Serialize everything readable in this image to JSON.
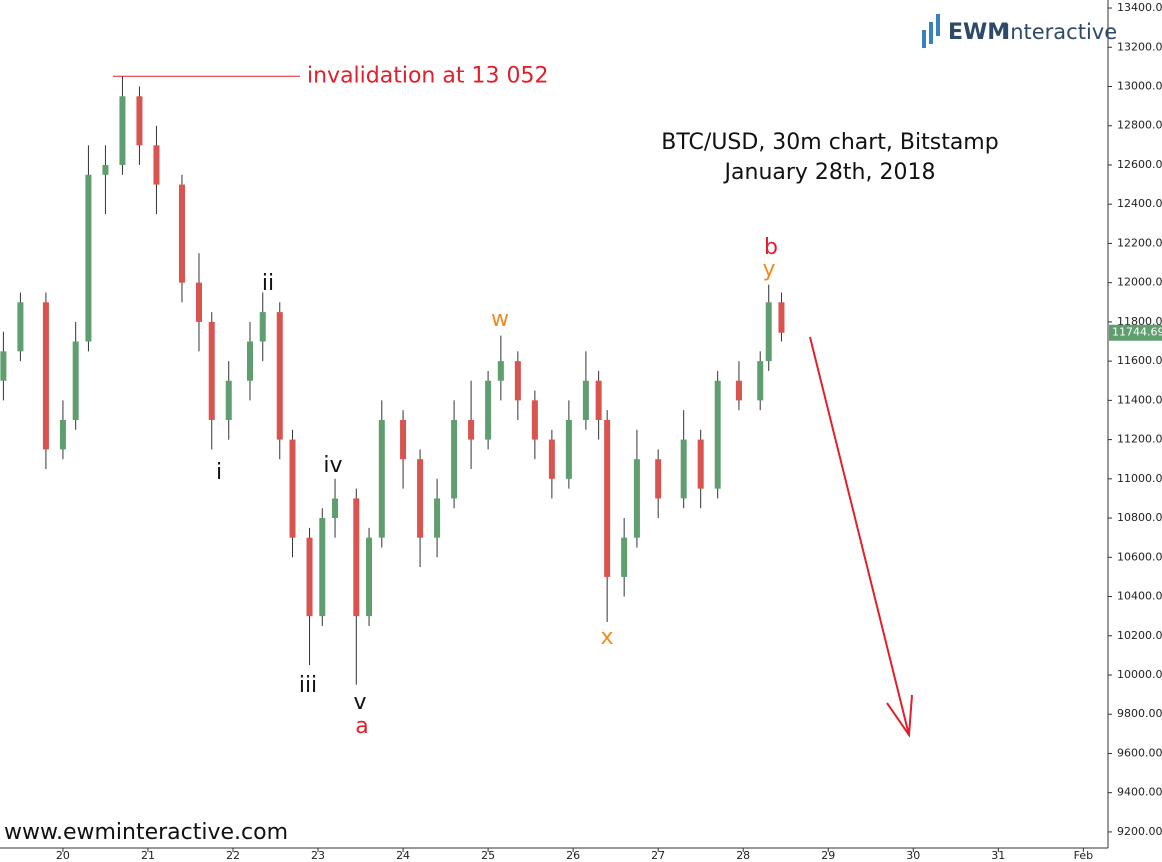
{
  "chart_data": {
    "type": "candlestick",
    "title": "BTC/USD, 30m chart, Bitstamp",
    "subtitle": "January 28th, 2018",
    "logo": {
      "bold": "EWM",
      "rest": "Interactive"
    },
    "footer": "www.ewminteractive.com",
    "x": [
      19.3,
      19.5,
      19.8,
      20.0,
      20.15,
      20.3,
      20.5,
      20.7,
      20.9,
      21.1,
      21.4,
      21.6,
      21.75,
      21.95,
      22.2,
      22.35,
      22.55,
      22.7,
      22.9,
      23.05,
      23.2,
      23.45,
      23.6,
      23.75,
      24.0,
      24.2,
      24.4,
      24.6,
      24.8,
      25.0,
      25.15,
      25.35,
      25.55,
      25.75,
      25.95,
      26.15,
      26.3,
      26.4,
      26.6,
      26.75,
      27.0,
      27.3,
      27.5,
      27.7,
      27.95,
      28.2,
      28.3,
      28.45
    ],
    "open": [
      11500,
      11650,
      11900,
      11150,
      11300,
      11700,
      12550,
      12600,
      12950,
      12700,
      12500,
      12000,
      11800,
      11300,
      11500,
      11700,
      11850,
      11200,
      10700,
      10300,
      10800,
      10900,
      10300,
      10700,
      11300,
      11100,
      10700,
      10900,
      11300,
      11200,
      11500,
      11600,
      11400,
      11200,
      11000,
      11300,
      11500,
      11300,
      10500,
      10700,
      11100,
      10900,
      11200,
      10950,
      11500,
      11400,
      11600,
      11900
    ],
    "high": [
      11750,
      11950,
      11950,
      11400,
      11800,
      12700,
      12700,
      13052,
      13000,
      12800,
      12550,
      12150,
      11850,
      11600,
      11800,
      11950,
      11900,
      11250,
      10750,
      10850,
      11000,
      10950,
      10750,
      11400,
      11350,
      11150,
      11000,
      11400,
      11500,
      11550,
      11730,
      11650,
      11450,
      11250,
      11400,
      11650,
      11550,
      11350,
      10800,
      11250,
      11150,
      11350,
      11250,
      11550,
      11600,
      11650,
      11990,
      11950
    ],
    "low": [
      11400,
      11600,
      11050,
      11100,
      11250,
      11650,
      12350,
      12550,
      12600,
      12350,
      11900,
      11650,
      11150,
      11200,
      11400,
      11600,
      11100,
      10600,
      10050,
      10250,
      10700,
      9950,
      10250,
      10650,
      10950,
      10550,
      10600,
      10850,
      11050,
      11150,
      11400,
      11300,
      11100,
      10900,
      10950,
      11250,
      11200,
      10270,
      10400,
      10650,
      10800,
      10850,
      10850,
      10900,
      11350,
      11350,
      11550,
      11700
    ],
    "close": [
      11650,
      11900,
      11150,
      11300,
      11700,
      12550,
      12600,
      12950,
      12700,
      12500,
      12000,
      11800,
      11300,
      11500,
      11700,
      11850,
      11200,
      10700,
      10300,
      10800,
      10900,
      10300,
      10700,
      11300,
      11100,
      10700,
      10900,
      11300,
      11200,
      11500,
      11600,
      11400,
      11200,
      11000,
      11300,
      11500,
      11300,
      10500,
      10700,
      11100,
      10900,
      11200,
      10950,
      11500,
      11400,
      11600,
      11900,
      11744.69
    ],
    "up_color": "#5f9e6e",
    "down_color": "#d9534f",
    "xlim": [
      19.26,
      32.29
    ],
    "xticks": [
      20,
      21,
      22,
      23,
      24,
      25,
      26,
      27,
      28,
      29,
      30,
      31,
      {
        "value": 32,
        "label": "Feb"
      }
    ],
    "ylim": [
      9118,
      13441
    ],
    "yticks": [
      {
        "value": 9200,
        "label": "9200.00"
      },
      {
        "value": 9400,
        "label": "9400.00"
      },
      {
        "value": 9600,
        "label": "9600.00"
      },
      {
        "value": 9800,
        "label": "9800.00"
      },
      {
        "value": 10000,
        "label": "10000.00"
      },
      {
        "value": 10200,
        "label": "10200.00"
      },
      {
        "value": 10400,
        "label": "10400.00"
      },
      {
        "value": 10600,
        "label": "10600.00"
      },
      {
        "value": 10800,
        "label": "10800.00"
      },
      {
        "value": 11000,
        "label": "11000.00"
      },
      {
        "value": 11200,
        "label": "11200.00"
      },
      {
        "value": 11400,
        "label": "11400.00"
      },
      {
        "value": 11600,
        "label": "11600.00"
      },
      {
        "value": 11800,
        "label": "11800.00"
      },
      {
        "value": 12000,
        "label": "12000.00"
      },
      {
        "value": 12200,
        "label": "12200.00"
      },
      {
        "value": 12400,
        "label": "12400.00"
      },
      {
        "value": 12600,
        "label": "12600.00"
      },
      {
        "value": 12800,
        "label": "12800.00"
      },
      {
        "value": 13000,
        "label": "13000.00"
      },
      {
        "value": 13200,
        "label": "13200.00"
      },
      {
        "value": 13400,
        "label": "13400.00"
      }
    ],
    "invalidation": {
      "label": "invalidation at 13 052",
      "value": 13052,
      "color": "#e0202a"
    },
    "wave_labels": [
      {
        "text": "i",
        "color": "#111111"
      },
      {
        "text": "ii",
        "color": "#111111"
      },
      {
        "text": "iii",
        "color": "#111111"
      },
      {
        "text": "iv",
        "color": "#111111"
      },
      {
        "text": "v",
        "color": "#111111"
      },
      {
        "text": "a",
        "color": "#e0202a"
      },
      {
        "text": "w",
        "color": "#f08a24"
      },
      {
        "text": "x",
        "color": "#f08a24"
      },
      {
        "text": "y",
        "color": "#f08a24"
      },
      {
        "text": "b",
        "color": "#e0202a"
      }
    ]
  }
}
